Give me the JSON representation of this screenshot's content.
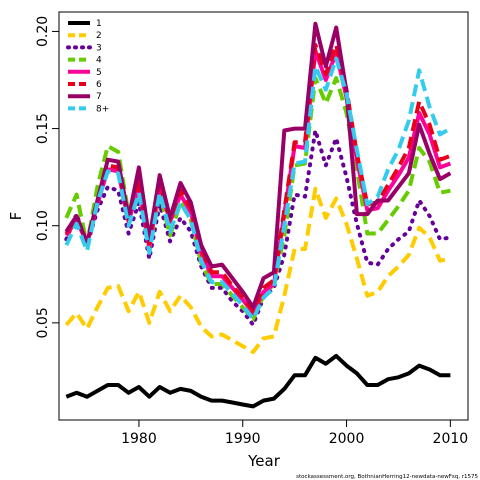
{
  "chart_data": {
    "type": "line",
    "title": "",
    "xlabel": "Year",
    "ylabel": "F",
    "xlim": [
      1972.3,
      2011.7
    ],
    "ylim": [
      0.0,
      0.21
    ],
    "xticks": [
      1980,
      1990,
      2000,
      2010
    ],
    "yticks": [
      0.05,
      0.1,
      0.15,
      0.2
    ],
    "ytick_labels": [
      "0.05",
      "0.10",
      "0.15",
      "0.20"
    ],
    "grid": false,
    "legend_position": "top-left",
    "x": [
      1973,
      1974,
      1975,
      1976,
      1977,
      1978,
      1979,
      1980,
      1981,
      1982,
      1983,
      1984,
      1985,
      1986,
      1987,
      1988,
      1989,
      1990,
      1991,
      1992,
      1993,
      1994,
      1995,
      1996,
      1997,
      1998,
      1999,
      2000,
      2001,
      2002,
      2003,
      2004,
      2005,
      2006,
      2007,
      2008,
      2009,
      2010
    ],
    "series": [
      {
        "name": "1",
        "color": "#000000",
        "dash": "solid",
        "values": [
          0.012,
          0.014,
          0.012,
          0.015,
          0.018,
          0.018,
          0.014,
          0.017,
          0.012,
          0.017,
          0.014,
          0.016,
          0.015,
          0.012,
          0.01,
          0.01,
          0.009,
          0.008,
          0.007,
          0.01,
          0.011,
          0.016,
          0.023,
          0.023,
          0.032,
          0.029,
          0.033,
          0.028,
          0.024,
          0.018,
          0.018,
          0.021,
          0.022,
          0.024,
          0.028,
          0.026,
          0.023,
          0.023
        ]
      },
      {
        "name": "2",
        "color": "#ffcc00",
        "dash": "dashed",
        "values": [
          0.049,
          0.055,
          0.047,
          0.058,
          0.068,
          0.069,
          0.056,
          0.066,
          0.05,
          0.066,
          0.056,
          0.064,
          0.058,
          0.048,
          0.043,
          0.044,
          0.041,
          0.038,
          0.035,
          0.042,
          0.043,
          0.064,
          0.088,
          0.088,
          0.119,
          0.104,
          0.114,
          0.101,
          0.083,
          0.064,
          0.066,
          0.074,
          0.079,
          0.085,
          0.099,
          0.094,
          0.082,
          0.083
        ]
      },
      {
        "name": "3",
        "color": "#660099",
        "dash": "dotted",
        "values": [
          0.093,
          0.106,
          0.09,
          0.108,
          0.12,
          0.118,
          0.096,
          0.112,
          0.083,
          0.111,
          0.092,
          0.104,
          0.097,
          0.079,
          0.068,
          0.068,
          0.061,
          0.056,
          0.049,
          0.063,
          0.068,
          0.085,
          0.116,
          0.115,
          0.149,
          0.131,
          0.145,
          0.125,
          0.101,
          0.081,
          0.08,
          0.088,
          0.093,
          0.097,
          0.113,
          0.105,
          0.093,
          0.094
        ]
      },
      {
        "name": "4",
        "color": "#66cc00",
        "dash": "dashed",
        "values": [
          0.104,
          0.116,
          0.09,
          0.12,
          0.141,
          0.138,
          0.106,
          0.121,
          0.088,
          0.117,
          0.095,
          0.112,
          0.103,
          0.081,
          0.07,
          0.07,
          0.064,
          0.058,
          0.052,
          0.064,
          0.07,
          0.095,
          0.131,
          0.132,
          0.176,
          0.163,
          0.176,
          0.158,
          0.129,
          0.096,
          0.096,
          0.103,
          0.11,
          0.118,
          0.14,
          0.133,
          0.117,
          0.118
        ]
      },
      {
        "name": "5",
        "color": "#ff0099",
        "dash": "solid",
        "values": [
          0.095,
          0.103,
          0.091,
          0.111,
          0.129,
          0.128,
          0.102,
          0.121,
          0.089,
          0.121,
          0.102,
          0.116,
          0.107,
          0.086,
          0.074,
          0.074,
          0.068,
          0.062,
          0.055,
          0.066,
          0.07,
          0.106,
          0.141,
          0.14,
          0.19,
          0.175,
          0.189,
          0.166,
          0.134,
          0.108,
          0.109,
          0.118,
          0.126,
          0.135,
          0.158,
          0.147,
          0.13,
          0.132
        ]
      },
      {
        "name": "6",
        "color": "#e8001a",
        "dash": "dashed",
        "values": [
          0.096,
          0.104,
          0.092,
          0.113,
          0.131,
          0.13,
          0.103,
          0.123,
          0.091,
          0.122,
          0.103,
          0.118,
          0.109,
          0.088,
          0.076,
          0.076,
          0.069,
          0.063,
          0.056,
          0.068,
          0.072,
          0.108,
          0.143,
          0.143,
          0.193,
          0.178,
          0.193,
          0.17,
          0.137,
          0.111,
          0.112,
          0.121,
          0.13,
          0.14,
          0.164,
          0.152,
          0.134,
          0.136
        ]
      },
      {
        "name": "7",
        "color": "#990066",
        "dash": "solid",
        "values": [
          0.097,
          0.105,
          0.091,
          0.113,
          0.134,
          0.133,
          0.104,
          0.13,
          0.093,
          0.126,
          0.104,
          0.122,
          0.112,
          0.09,
          0.079,
          0.08,
          0.073,
          0.066,
          0.058,
          0.073,
          0.076,
          0.149,
          0.15,
          0.15,
          0.204,
          0.182,
          0.202,
          0.169,
          0.106,
          0.106,
          0.113,
          0.113,
          0.12,
          0.127,
          0.152,
          0.137,
          0.124,
          0.127
        ]
      },
      {
        "name": "8+",
        "color": "#33ccee",
        "dash": "dashed",
        "values": [
          0.09,
          0.101,
          0.087,
          0.112,
          0.128,
          0.127,
          0.1,
          0.117,
          0.086,
          0.117,
          0.097,
          0.112,
          0.103,
          0.082,
          0.071,
          0.071,
          0.065,
          0.059,
          0.052,
          0.063,
          0.068,
          0.1,
          0.132,
          0.133,
          0.182,
          0.17,
          0.186,
          0.168,
          0.139,
          0.111,
          0.115,
          0.129,
          0.139,
          0.154,
          0.18,
          0.161,
          0.147,
          0.15
        ]
      }
    ]
  },
  "footer": {
    "watermark": "stockassessment.org, BothnianHerring12-newdata-newFsq, r1575"
  }
}
